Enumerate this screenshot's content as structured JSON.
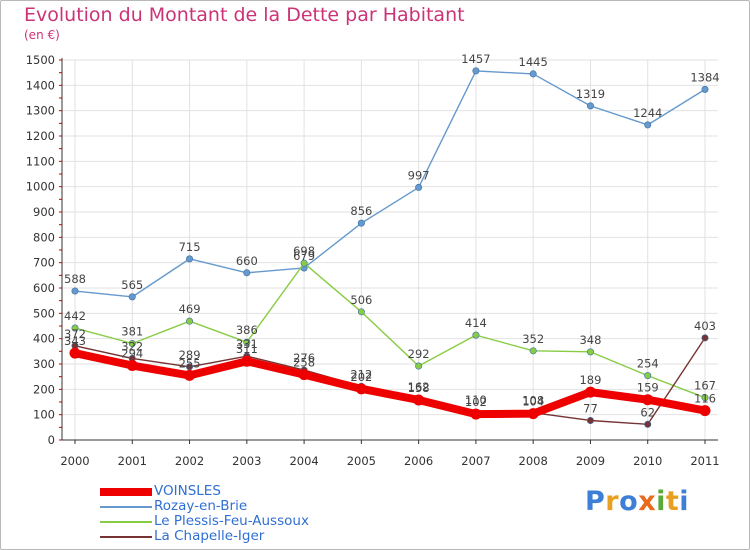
{
  "title": "Evolution du Montant de la Dette par Habitant",
  "unit": "(en €)",
  "logo": {
    "text": "Proxiti",
    "colors": [
      "#3d7fd6",
      "#e8a020",
      "#3d7fd6",
      "#e86a1a",
      "#5aaa3a",
      "#e8a020",
      "#3d7fd6"
    ]
  },
  "chart_data": {
    "type": "line",
    "title": "Evolution du Montant de la Dette par Habitant",
    "ylabel": "(en €)",
    "xlabel": "",
    "x": [
      "2000",
      "2001",
      "2002",
      "2003",
      "2004",
      "2005",
      "2006",
      "2007",
      "2008",
      "2009",
      "2010",
      "2011"
    ],
    "ylim": [
      0,
      1500
    ],
    "yticks": [
      0,
      100,
      200,
      300,
      400,
      500,
      600,
      700,
      800,
      900,
      1000,
      1100,
      1200,
      1300,
      1400,
      1500
    ],
    "grid": true,
    "legend": "bottom-left",
    "series": [
      {
        "name": "VOINSLES",
        "color": "#ee0000",
        "values": [
          343,
          294,
          255,
          311,
          258,
          202,
          158,
          102,
          104,
          189,
          159,
          116
        ],
        "labels": [
          "343",
          "294",
          "255",
          "311",
          "258",
          "202",
          "158",
          "102",
          "104",
          "189",
          "159",
          "116"
        ]
      },
      {
        "name": "Rozay-en-Brie",
        "color": "#6699cc",
        "values": [
          588,
          565,
          715,
          660,
          679,
          856,
          997,
          1457,
          1445,
          1319,
          1244,
          1384
        ],
        "labels": [
          "588",
          "565",
          "715",
          "660",
          "679",
          "856",
          "997",
          "1457",
          "1445",
          "1319",
          "1244",
          "1384"
        ]
      },
      {
        "name": "Le Plessis-Feu-Aussoux",
        "color": "#88cc44",
        "values": [
          442,
          381,
          469,
          386,
          698,
          506,
          292,
          414,
          352,
          348,
          254,
          167
        ],
        "labels": [
          "442",
          "381",
          "469",
          "386",
          "698",
          "506",
          "292",
          "414",
          "352",
          "348",
          "254",
          "167"
        ]
      },
      {
        "name": "La Chapelle-Iger",
        "color": "#773333",
        "values": [
          372,
          322,
          289,
          331,
          276,
          212,
          162,
          110,
          108,
          77,
          62,
          403
        ],
        "labels": [
          "372",
          "322",
          "289",
          "331",
          "276",
          "212",
          "162",
          "110",
          "108",
          "77",
          "62",
          "403"
        ]
      }
    ]
  }
}
